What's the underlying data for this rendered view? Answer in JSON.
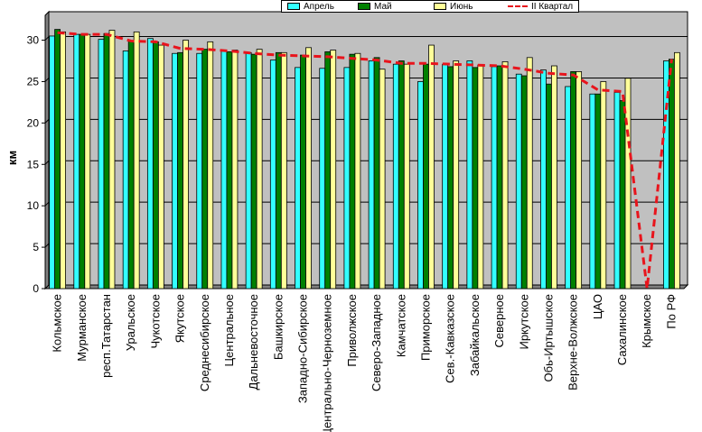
{
  "chart_data": {
    "type": "bar",
    "ylabel": "км",
    "ylim": [
      0,
      33
    ],
    "yticks": [
      0,
      5,
      10,
      15,
      20,
      25,
      30
    ],
    "grid": "horizontal",
    "legend_position": "top-center",
    "plot_background": "#c0c0c0",
    "categories": [
      "Кольмское",
      "Мурманское",
      "респ.Татарстан",
      "Уральское",
      "Чукотское",
      "Якутское",
      "Среднесибирское",
      "Центральное",
      "Дальневосточное",
      "Башкирское",
      "Западно-Сибирское",
      "Центрально-Черноземное",
      "Приволжское",
      "Северо-Западное",
      "Камчатское",
      "Приморское",
      "Сев.-Кавказское",
      "Забайкальское",
      "Северное",
      "Иркутское",
      "Обь-Иртышское",
      "Верхне-Волжское",
      "ЦАО",
      "Сахалинское",
      "Крымское",
      "По РФ"
    ],
    "series": [
      {
        "name": "Апрель",
        "color": "#33ffff",
        "values": [
          30.5,
          30.7,
          30.1,
          28.7,
          30.2,
          28.4,
          28.4,
          28.8,
          28.5,
          27.6,
          26.7,
          26.6,
          26.7,
          27.5,
          27.1,
          25.0,
          27.1,
          27.5,
          26.8,
          25.9,
          26.4,
          24.4,
          23.5,
          23.7,
          0,
          27.5
        ]
      },
      {
        "name": "Май",
        "color": "#008000",
        "values": [
          31.3,
          30.7,
          30.8,
          29.9,
          29.8,
          28.5,
          28.9,
          28.6,
          28.3,
          28.5,
          28.2,
          28.6,
          28.3,
          27.9,
          27.5,
          27.1,
          26.8,
          26.7,
          26.9,
          25.7,
          24.7,
          26.2,
          23.5,
          22.7,
          0,
          27.7
        ]
      },
      {
        "name": "Июнь",
        "color": "#ffff99",
        "values": [
          31.0,
          30.7,
          31.2,
          31.0,
          29.4,
          30.0,
          29.8,
          28.8,
          28.9,
          28.5,
          29.1,
          28.8,
          28.4,
          26.5,
          27.1,
          29.4,
          27.5,
          27.0,
          27.4,
          27.9,
          26.9,
          26.2,
          25.0,
          25.4,
          0,
          28.5
        ]
      },
      {
        "name": "II Квартал",
        "color": "#e8141c",
        "style": "dashed-line",
        "values": [
          30.9,
          30.7,
          30.7,
          29.9,
          29.8,
          29.0,
          28.9,
          28.7,
          28.4,
          28.2,
          28.1,
          28.0,
          27.8,
          27.6,
          27.2,
          27.2,
          27.1,
          27.0,
          26.9,
          26.5,
          26.0,
          25.8,
          24.0,
          23.8,
          0,
          27.7
        ]
      }
    ]
  }
}
